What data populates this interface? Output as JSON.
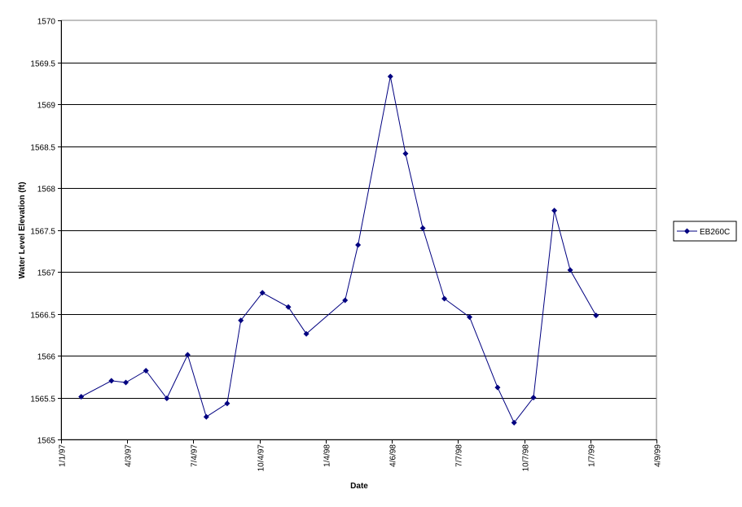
{
  "chart_data": {
    "type": "line",
    "title": "",
    "xlabel": "Date",
    "ylabel": "Water Level Elevation (ft)",
    "ylim": [
      1565,
      1570
    ],
    "xlim": [
      "1997-01-01",
      "1999-04-09"
    ],
    "y_ticks": [
      "1565",
      "1565.5",
      "1566",
      "1566.5",
      "1567",
      "1567.5",
      "1568",
      "1568.5",
      "1569",
      "1569.5",
      "1570"
    ],
    "x_tick_labels": [
      "1/1/97",
      "4/3/97",
      "7/4/97",
      "10/4/97",
      "1/4/98",
      "4/6/98",
      "7/7/98",
      "10/7/98",
      "1/7/99",
      "4/9/99"
    ],
    "x_tick_dates": [
      "1997-01-01",
      "1997-04-03",
      "1997-07-04",
      "1997-10-04",
      "1998-01-04",
      "1998-04-06",
      "1998-07-07",
      "1998-10-07",
      "1999-01-07",
      "1999-04-09"
    ],
    "grid": "horizontal",
    "legend_position": "right",
    "series": [
      {
        "name": "EB260C",
        "color": "#000080",
        "marker": "diamond",
        "x": [
          "1997-01-29",
          "1997-03-12",
          "1997-04-01",
          "1997-04-29",
          "1997-05-28",
          "1997-06-26",
          "1997-07-22",
          "1997-08-20",
          "1997-09-08",
          "1997-10-08",
          "1997-11-13",
          "1997-12-08",
          "1998-01-31",
          "1998-02-18",
          "1998-04-04",
          "1998-04-25",
          "1998-05-19",
          "1998-06-18",
          "1998-07-23",
          "1998-08-31",
          "1998-09-23",
          "1998-10-20",
          "1998-11-18",
          "1998-12-10",
          "1999-01-15"
        ],
        "y": [
          1565.51,
          1565.7,
          1565.68,
          1565.82,
          1565.49,
          1566.01,
          1565.27,
          1565.43,
          1566.42,
          1566.75,
          1566.58,
          1566.26,
          1566.66,
          1567.32,
          1569.33,
          1568.41,
          1567.52,
          1566.68,
          1566.46,
          1565.62,
          1565.2,
          1565.5,
          1567.73,
          1567.02,
          1566.48
        ]
      }
    ]
  }
}
